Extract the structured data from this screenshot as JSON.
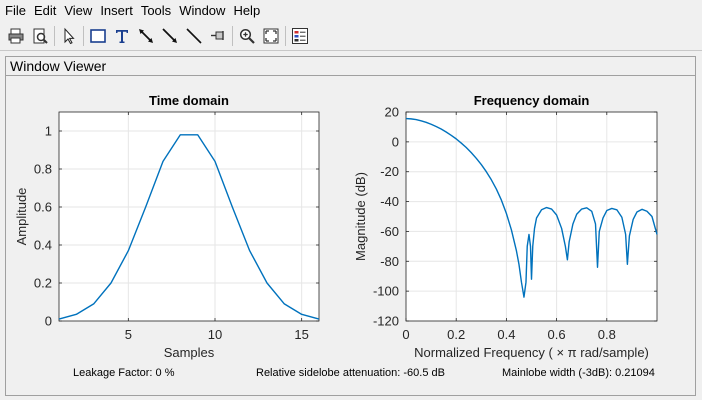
{
  "menu": [
    "File",
    "Edit",
    "View",
    "Insert",
    "Tools",
    "Window",
    "Help"
  ],
  "toolbar": {
    "icons": [
      "print-icon",
      "print-preview-icon",
      "pointer-icon",
      "rectangle-icon",
      "text-icon",
      "double-arrow-icon",
      "arrow-icon",
      "line-icon",
      "pin-icon",
      "zoom-in-icon",
      "fit-icon",
      "legend-icon"
    ]
  },
  "panel": {
    "title": "Window Viewer"
  },
  "status": {
    "leakage": "Leakage Factor: 0 %",
    "sidelobe": "Relative sidelobe attenuation: -60.5 dB",
    "mainlobe": "Mainlobe width (-3dB): 0.21094"
  },
  "colors": {
    "line": "#0072bd",
    "background": "#f0f0f0",
    "axes": "#ffffff",
    "grid": "#e6e6e6"
  },
  "chart_data": [
    {
      "type": "line",
      "title": "Time domain",
      "xlabel": "Samples",
      "ylabel": "Amplitude",
      "xlim": [
        1,
        16
      ],
      "ylim": [
        0,
        1.1
      ],
      "xticks": [
        5,
        10,
        15
      ],
      "yticks": [
        0,
        0.2,
        0.4,
        0.6,
        0.8,
        1
      ],
      "grid": true,
      "x": [
        1,
        2,
        3,
        4,
        5,
        6,
        7,
        8,
        9,
        10,
        11,
        12,
        13,
        14,
        15,
        16
      ],
      "y": [
        0.01,
        0.035,
        0.09,
        0.2,
        0.37,
        0.6,
        0.84,
        0.98,
        0.98,
        0.84,
        0.6,
        0.37,
        0.2,
        0.09,
        0.035,
        0.01
      ]
    },
    {
      "type": "line",
      "title": "Frequency domain",
      "xlabel": "Normalized Frequency  ( × π rad/sample)",
      "ylabel": "Magnitude (dB)",
      "xlim": [
        0,
        1
      ],
      "ylim": [
        -120,
        20
      ],
      "xticks": [
        0,
        0.2,
        0.4,
        0.6,
        0.8
      ],
      "yticks": [
        20,
        0,
        -20,
        -40,
        -60,
        -80,
        -100,
        -120
      ],
      "grid": true,
      "x": [
        0,
        0.02,
        0.04,
        0.06,
        0.08,
        0.1,
        0.12,
        0.14,
        0.16,
        0.18,
        0.2,
        0.22,
        0.24,
        0.26,
        0.28,
        0.3,
        0.32,
        0.34,
        0.36,
        0.38,
        0.4,
        0.42,
        0.44,
        0.45,
        0.46,
        0.47,
        0.478,
        0.483,
        0.49,
        0.496,
        0.5,
        0.505,
        0.512,
        0.52,
        0.54,
        0.56,
        0.58,
        0.6,
        0.62,
        0.635,
        0.643,
        0.65,
        0.665,
        0.68,
        0.7,
        0.72,
        0.74,
        0.755,
        0.763,
        0.77,
        0.785,
        0.8,
        0.82,
        0.84,
        0.86,
        0.875,
        0.882,
        0.89,
        0.905,
        0.92,
        0.94,
        0.96,
        0.98,
        1.0
      ],
      "y": [
        15.6,
        15.4,
        14.9,
        14.1,
        13.1,
        11.8,
        10.3,
        8.6,
        6.6,
        4.4,
        2.0,
        -0.8,
        -3.8,
        -7.2,
        -11.0,
        -15.2,
        -20.0,
        -25.4,
        -31.6,
        -39.0,
        -48.0,
        -59.0,
        -73.0,
        -82.0,
        -94.0,
        -104.0,
        -94.0,
        -70.0,
        -62.0,
        -70.0,
        -92.0,
        -70.0,
        -58.0,
        -51.0,
        -45.5,
        -44.0,
        -45.0,
        -49.0,
        -58.0,
        -70.0,
        -79.0,
        -67.0,
        -55.0,
        -48.5,
        -45.0,
        -44.2,
        -46.5,
        -55.0,
        -84.0,
        -60.0,
        -51.0,
        -46.0,
        -44.6,
        -45.5,
        -50.5,
        -62.0,
        -82.0,
        -63.0,
        -52.0,
        -47.0,
        -45.2,
        -46.5,
        -50.0,
        -62.0
      ]
    }
  ]
}
